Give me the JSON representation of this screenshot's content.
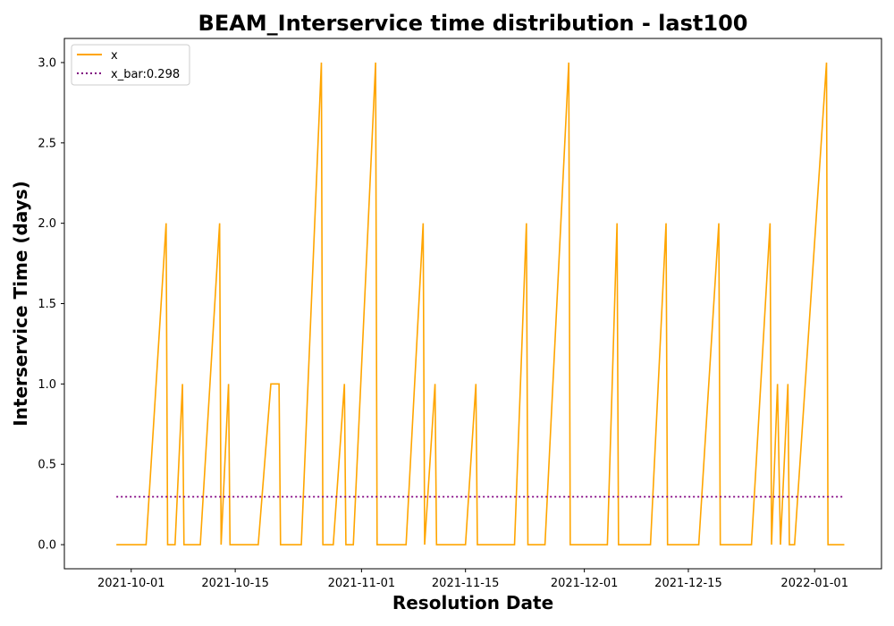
{
  "chart_data": {
    "type": "line",
    "title": "BEAM_Interservice time distribution - last100",
    "xlabel": "Resolution Date",
    "ylabel": "Interservice Time (days)",
    "x_tick_labels": [
      "2021-10-01",
      "2021-10-15",
      "2021-11-01",
      "2021-11-15",
      "2021-12-01",
      "2021-12-15",
      "2022-01-01"
    ],
    "x_tick_days": [
      2.0,
      16.0,
      33.0,
      47.0,
      63.0,
      77.0,
      94.0
    ],
    "x_range_days": [
      -7.0,
      103.0
    ],
    "x_origin_date": "2021-09-29",
    "y_ticks": [
      0.0,
      0.5,
      1.0,
      1.5,
      2.0,
      2.5,
      3.0
    ],
    "y_tick_labels": [
      "0.0",
      "0.5",
      "1.0",
      "1.5",
      "2.0",
      "2.5",
      "3.0"
    ],
    "ylim": [
      -0.15,
      3.15
    ],
    "legend": {
      "position": "top-left",
      "entries": [
        "x",
        "x_bar:0.298"
      ]
    },
    "series": [
      {
        "name": "x",
        "color": "#ffa500",
        "style": "solid",
        "x": [
          0,
          4,
          6.7,
          6.9,
          7.9,
          8.9,
          9.1,
          11.3,
          13.9,
          14.1,
          15.1,
          15.3,
          19.1,
          20.8,
          21.9,
          22.1,
          24.9,
          27.6,
          27.8,
          29.2,
          30.7,
          30.9,
          31.9,
          34.9,
          35.1,
          39.0,
          41.3,
          41.5,
          42.9,
          43.1,
          47.0,
          48.4,
          48.6,
          53.6,
          55.2,
          55.4,
          57.7,
          60.9,
          61.1,
          66.1,
          67.4,
          67.6,
          71.9,
          74.0,
          74.2,
          78.4,
          81.1,
          81.3,
          85.5,
          88.0,
          88.2,
          89.0,
          89.4,
          90.4,
          90.6,
          91.3,
          95.6,
          95.8,
          98.0
        ],
        "values": [
          0,
          0,
          2,
          0,
          0,
          1,
          0,
          0,
          2,
          0,
          1,
          0,
          0,
          1,
          1,
          0,
          0,
          3,
          0,
          0,
          1,
          0,
          0,
          3,
          0,
          0,
          2,
          0,
          1,
          0,
          0,
          1,
          0,
          0,
          2,
          0,
          0,
          3,
          0,
          0,
          2,
          0,
          0,
          2,
          0,
          0,
          2,
          0,
          0,
          2,
          0,
          1,
          0,
          1,
          0,
          0,
          3,
          0,
          0
        ]
      },
      {
        "name": "x_bar:0.298",
        "color": "#800080",
        "style": "dotted",
        "x": [
          0,
          98.0
        ],
        "values": [
          0.298,
          0.298
        ]
      }
    ]
  }
}
